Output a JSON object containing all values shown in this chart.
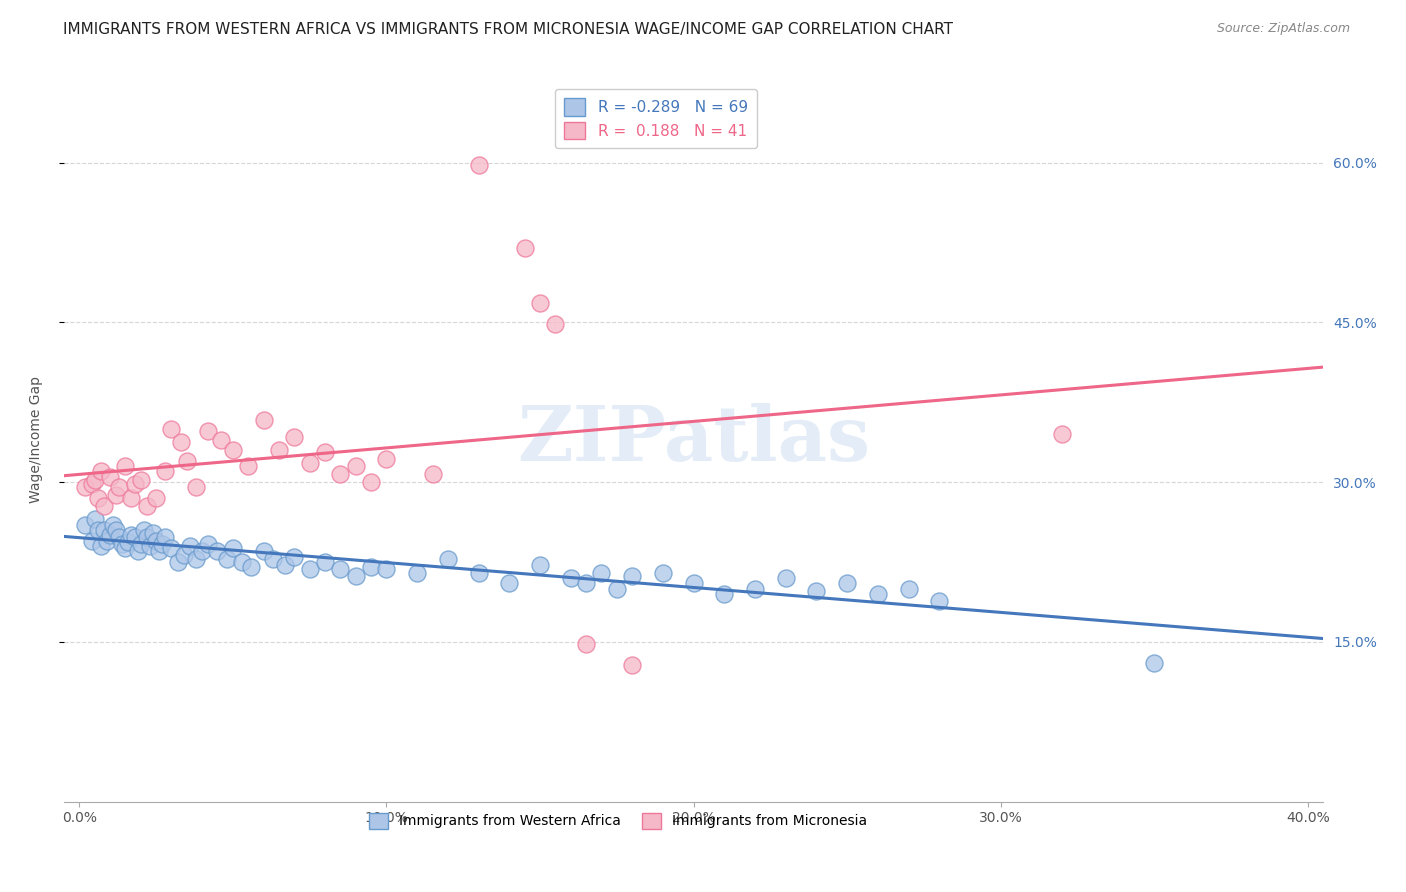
{
  "title": "IMMIGRANTS FROM WESTERN AFRICA VS IMMIGRANTS FROM MICRONESIA WAGE/INCOME GAP CORRELATION CHART",
  "source": "Source: ZipAtlas.com",
  "ylabel": "Wage/Income Gap",
  "yticks": [
    0.15,
    0.3,
    0.45,
    0.6
  ],
  "xticks": [
    0.0,
    0.1,
    0.2,
    0.3,
    0.4
  ],
  "xlim": [
    -0.005,
    0.405
  ],
  "ylim": [
    0.0,
    0.68
  ],
  "legend_blue_label": "R = -0.289   N = 69",
  "legend_pink_label": "R =  0.188   N = 41",
  "bottom_label_blue": "Immigrants from Western Africa",
  "bottom_label_pink": "Immigrants from Micronesia",
  "blue_color": "#adc6e8",
  "pink_color": "#f5b8c8",
  "blue_edge_color": "#6699cc",
  "pink_edge_color": "#ee7799",
  "blue_line_color": "#4477bb",
  "pink_line_color": "#ee6688",
  "title_fontsize": 11,
  "source_fontsize": 9,
  "watermark": "ZIPatlas",
  "blue_x": [
    0.002,
    0.004,
    0.005,
    0.006,
    0.007,
    0.008,
    0.009,
    0.01,
    0.011,
    0.012,
    0.013,
    0.014,
    0.015,
    0.016,
    0.017,
    0.018,
    0.019,
    0.02,
    0.021,
    0.022,
    0.023,
    0.024,
    0.025,
    0.026,
    0.027,
    0.028,
    0.03,
    0.032,
    0.034,
    0.036,
    0.038,
    0.04,
    0.042,
    0.045,
    0.048,
    0.05,
    0.053,
    0.056,
    0.06,
    0.063,
    0.067,
    0.07,
    0.075,
    0.08,
    0.085,
    0.09,
    0.095,
    0.1,
    0.11,
    0.12,
    0.13,
    0.14,
    0.15,
    0.16,
    0.165,
    0.17,
    0.175,
    0.18,
    0.19,
    0.2,
    0.21,
    0.22,
    0.23,
    0.24,
    0.25,
    0.26,
    0.27,
    0.28,
    0.35
  ],
  "blue_y": [
    0.26,
    0.245,
    0.265,
    0.255,
    0.24,
    0.255,
    0.245,
    0.25,
    0.26,
    0.255,
    0.248,
    0.242,
    0.238,
    0.244,
    0.25,
    0.248,
    0.235,
    0.242,
    0.255,
    0.248,
    0.24,
    0.252,
    0.245,
    0.235,
    0.242,
    0.248,
    0.238,
    0.225,
    0.232,
    0.24,
    0.228,
    0.235,
    0.242,
    0.235,
    0.228,
    0.238,
    0.225,
    0.22,
    0.235,
    0.228,
    0.222,
    0.23,
    0.218,
    0.225,
    0.218,
    0.212,
    0.22,
    0.218,
    0.215,
    0.228,
    0.215,
    0.205,
    0.222,
    0.21,
    0.205,
    0.215,
    0.2,
    0.212,
    0.215,
    0.205,
    0.195,
    0.2,
    0.21,
    0.198,
    0.205,
    0.195,
    0.2,
    0.188,
    0.13
  ],
  "pink_x": [
    0.002,
    0.004,
    0.005,
    0.006,
    0.007,
    0.008,
    0.01,
    0.012,
    0.013,
    0.015,
    0.017,
    0.018,
    0.02,
    0.022,
    0.025,
    0.028,
    0.03,
    0.033,
    0.035,
    0.038,
    0.042,
    0.046,
    0.05,
    0.055,
    0.06,
    0.065,
    0.07,
    0.075,
    0.08,
    0.085,
    0.09,
    0.095,
    0.1,
    0.115,
    0.13,
    0.145,
    0.15,
    0.155,
    0.165,
    0.18,
    0.32
  ],
  "pink_y": [
    0.295,
    0.298,
    0.302,
    0.285,
    0.31,
    0.278,
    0.305,
    0.288,
    0.295,
    0.315,
    0.285,
    0.298,
    0.302,
    0.278,
    0.285,
    0.31,
    0.35,
    0.338,
    0.32,
    0.295,
    0.348,
    0.34,
    0.33,
    0.315,
    0.358,
    0.33,
    0.342,
    0.318,
    0.328,
    0.308,
    0.315,
    0.3,
    0.322,
    0.308,
    0.598,
    0.52,
    0.468,
    0.448,
    0.148,
    0.128,
    0.345
  ]
}
